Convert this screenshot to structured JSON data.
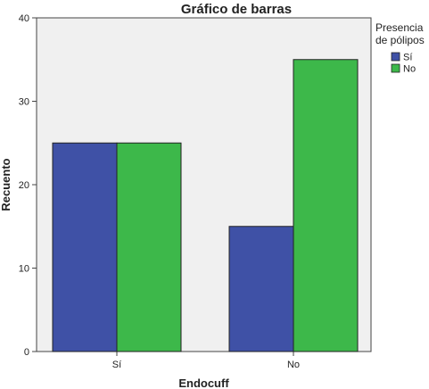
{
  "chart_data": {
    "type": "bar",
    "title": "Gráfico de barras",
    "xlabel": "Endocuff",
    "ylabel": "Recuento",
    "categories": [
      "Sí",
      "No"
    ],
    "series": [
      {
        "name": "Sí",
        "values": [
          25,
          15
        ],
        "color": "#3f51a6"
      },
      {
        "name": "No",
        "values": [
          25,
          35
        ],
        "color": "#3db84a"
      }
    ],
    "ylim": [
      0,
      40
    ],
    "yticks": [
      0,
      10,
      20,
      30,
      40
    ],
    "legend": {
      "title_lines": [
        "Presencia",
        "de pólipos"
      ],
      "placement": "right"
    },
    "plot_background": "#f0f0f0",
    "grid": false
  }
}
